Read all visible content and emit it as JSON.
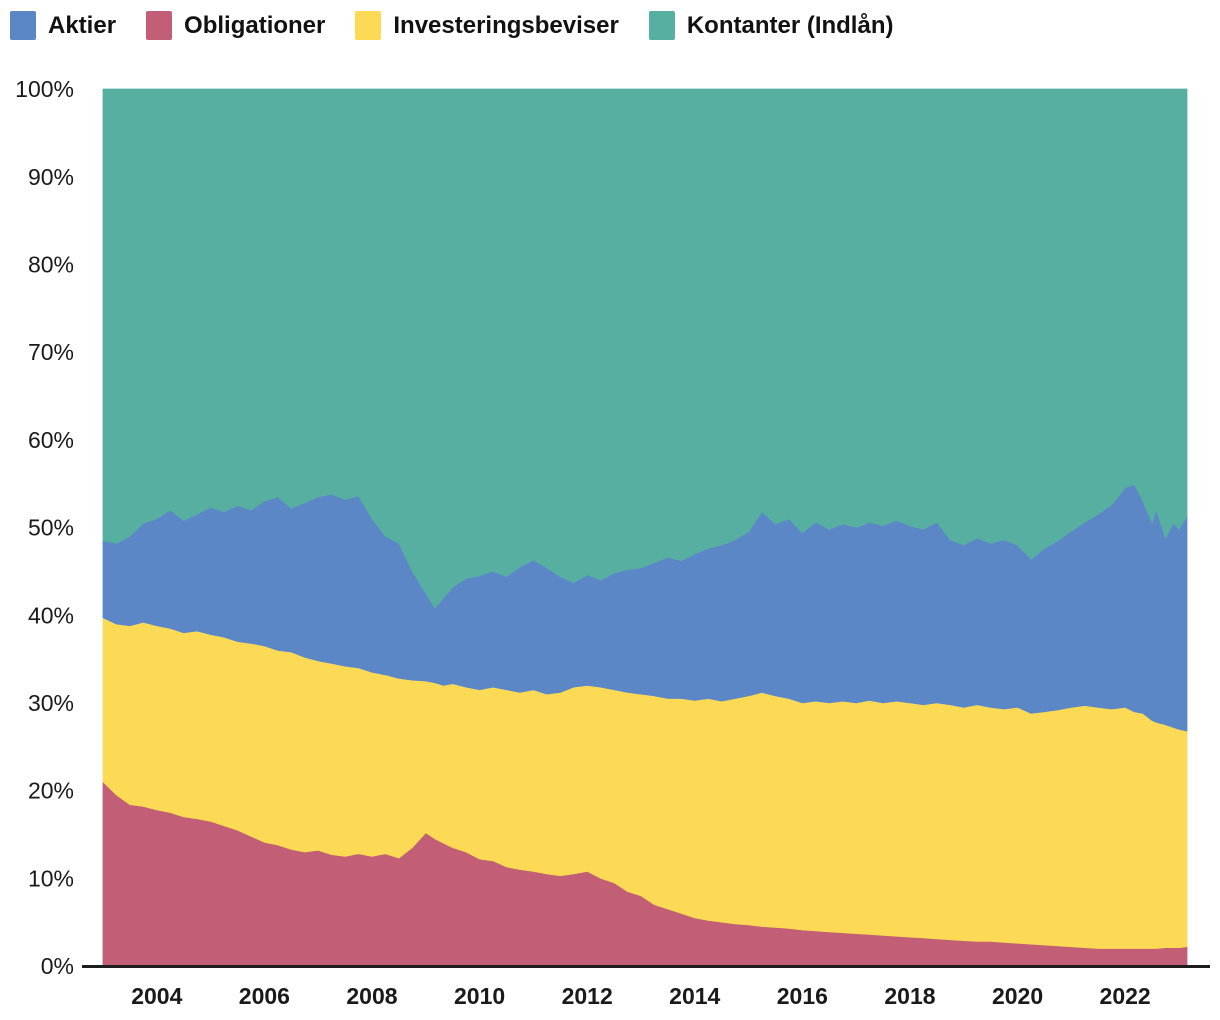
{
  "page": {
    "background": "#ffffff"
  },
  "legend": {
    "items": [
      {
        "id": "aktier",
        "label": "Aktier",
        "color": "#5b87c7"
      },
      {
        "id": "obligationer",
        "label": "Obligationer",
        "color": "#c25e75"
      },
      {
        "id": "investeringsbeviser",
        "label": "Investeringsbeviser",
        "color": "#fdda55"
      },
      {
        "id": "kontanter",
        "label": "Kontanter (Indlån)",
        "color": "#57afa2"
      }
    ]
  },
  "chart_data": {
    "type": "area",
    "stacked": true,
    "normalized": true,
    "title": "",
    "xlabel": "",
    "ylabel": "",
    "grid": false,
    "legend_position": "top-left",
    "axis_color": "#1d1d1d",
    "tick_label_color": "#1a1a1a",
    "xlim": [
      2003.0,
      2023.15
    ],
    "ylim": [
      0,
      100
    ],
    "y_ticks": [
      {
        "value": 0,
        "label": "0%"
      },
      {
        "value": 10,
        "label": "10%"
      },
      {
        "value": 20,
        "label": "20%"
      },
      {
        "value": 30,
        "label": "30%"
      },
      {
        "value": 40,
        "label": "40%"
      },
      {
        "value": 50,
        "label": "50%"
      },
      {
        "value": 60,
        "label": "60%"
      },
      {
        "value": 70,
        "label": "70%"
      },
      {
        "value": 80,
        "label": "80%"
      },
      {
        "value": 90,
        "label": "90%"
      },
      {
        "value": 100,
        "label": "100%"
      }
    ],
    "x_ticks": [
      {
        "value": 2004,
        "label": "2004"
      },
      {
        "value": 2006,
        "label": "2006"
      },
      {
        "value": 2008,
        "label": "2008"
      },
      {
        "value": 2010,
        "label": "2010"
      },
      {
        "value": 2012,
        "label": "2012"
      },
      {
        "value": 2014,
        "label": "2014"
      },
      {
        "value": 2016,
        "label": "2016"
      },
      {
        "value": 2018,
        "label": "2018"
      },
      {
        "value": 2020,
        "label": "2020"
      },
      {
        "value": 2022,
        "label": "2022"
      }
    ],
    "x": [
      2003.0,
      2003.25,
      2003.5,
      2003.75,
      2004.0,
      2004.25,
      2004.5,
      2004.75,
      2005.0,
      2005.25,
      2005.5,
      2005.75,
      2006.0,
      2006.25,
      2006.5,
      2006.75,
      2007.0,
      2007.25,
      2007.5,
      2007.75,
      2008.0,
      2008.25,
      2008.5,
      2008.75,
      2009.0,
      2009.17,
      2009.33,
      2009.5,
      2009.75,
      2010.0,
      2010.25,
      2010.5,
      2010.75,
      2011.0,
      2011.25,
      2011.5,
      2011.75,
      2012.0,
      2012.25,
      2012.5,
      2012.75,
      2013.0,
      2013.25,
      2013.5,
      2013.75,
      2014.0,
      2014.25,
      2014.5,
      2014.75,
      2015.0,
      2015.25,
      2015.5,
      2015.75,
      2016.0,
      2016.25,
      2016.5,
      2016.75,
      2017.0,
      2017.25,
      2017.5,
      2017.75,
      2018.0,
      2018.25,
      2018.5,
      2018.75,
      2019.0,
      2019.25,
      2019.5,
      2019.75,
      2020.0,
      2020.25,
      2020.5,
      2020.75,
      2021.0,
      2021.25,
      2021.5,
      2021.75,
      2022.0,
      2022.17,
      2022.33,
      2022.5,
      2022.58,
      2022.75,
      2022.9,
      2023.0,
      2023.15
    ],
    "series": [
      {
        "id": "obligationer",
        "name": "Obligationer",
        "color": "#c25e75",
        "values": [
          21.0,
          19.5,
          18.4,
          18.2,
          17.8,
          17.5,
          17.0,
          16.8,
          16.5,
          16.0,
          15.5,
          14.8,
          14.1,
          13.8,
          13.3,
          13.0,
          13.2,
          12.7,
          12.5,
          12.8,
          12.5,
          12.8,
          12.3,
          13.5,
          15.2,
          14.5,
          14.0,
          13.5,
          13.0,
          12.2,
          12.0,
          11.3,
          11.0,
          10.8,
          10.5,
          10.3,
          10.5,
          10.8,
          10.0,
          9.5,
          8.5,
          8.0,
          7.0,
          6.5,
          6.0,
          5.5,
          5.2,
          5.0,
          4.8,
          4.7,
          4.5,
          4.4,
          4.3,
          4.1,
          4.0,
          3.9,
          3.8,
          3.7,
          3.6,
          3.5,
          3.4,
          3.3,
          3.2,
          3.1,
          3.0,
          2.9,
          2.8,
          2.8,
          2.7,
          2.6,
          2.5,
          2.4,
          2.3,
          2.2,
          2.1,
          2.0,
          2.0,
          2.0,
          2.0,
          2.0,
          2.0,
          2.0,
          2.1,
          2.1,
          2.1,
          2.2
        ]
      },
      {
        "id": "investeringsbeviser",
        "name": "Investeringsbeviser",
        "color": "#fdda55",
        "values": [
          18.7,
          19.5,
          20.4,
          21.0,
          21.0,
          21.0,
          21.0,
          21.4,
          21.3,
          21.5,
          21.5,
          22.0,
          22.4,
          22.2,
          22.5,
          22.2,
          21.6,
          21.8,
          21.7,
          21.2,
          21.0,
          20.4,
          20.5,
          19.1,
          17.3,
          17.8,
          18.0,
          18.7,
          18.8,
          19.3,
          19.8,
          20.2,
          20.2,
          20.7,
          20.5,
          20.9,
          21.3,
          21.2,
          21.8,
          22.0,
          22.7,
          23.0,
          23.8,
          24.0,
          24.5,
          24.8,
          25.3,
          25.2,
          25.7,
          26.1,
          26.7,
          26.4,
          26.2,
          25.9,
          26.2,
          26.1,
          26.4,
          26.3,
          26.7,
          26.5,
          26.8,
          26.7,
          26.6,
          26.9,
          26.8,
          26.6,
          27.0,
          26.7,
          26.6,
          26.9,
          26.3,
          26.6,
          26.9,
          27.3,
          27.6,
          27.5,
          27.3,
          27.5,
          27.0,
          26.8,
          26.0,
          25.8,
          25.4,
          25.1,
          24.9,
          24.6
        ]
      },
      {
        "id": "aktier",
        "name": "Aktier",
        "color": "#5b87c7",
        "values": [
          8.8,
          9.2,
          10.2,
          11.3,
          12.2,
          13.5,
          12.8,
          13.3,
          14.5,
          14.3,
          15.5,
          15.2,
          16.5,
          17.5,
          16.4,
          17.6,
          18.7,
          19.3,
          19.0,
          19.6,
          17.5,
          15.8,
          15.4,
          12.4,
          10.0,
          8.5,
          10.0,
          11.0,
          12.4,
          13.0,
          13.2,
          12.9,
          14.3,
          14.8,
          14.4,
          13.2,
          11.9,
          12.6,
          12.2,
          13.3,
          14.0,
          14.4,
          15.2,
          16.1,
          15.7,
          16.7,
          17.1,
          17.8,
          18.1,
          18.7,
          20.6,
          19.6,
          20.5,
          19.4,
          20.4,
          19.8,
          20.2,
          20.0,
          20.3,
          20.2,
          20.6,
          20.2,
          20.0,
          20.6,
          18.8,
          18.5,
          19.0,
          18.7,
          19.3,
          18.5,
          17.6,
          18.6,
          19.3,
          20.1,
          20.9,
          22.0,
          23.3,
          25.0,
          25.9,
          24.2,
          22.5,
          24.2,
          21.3,
          23.3,
          22.8,
          24.5
        ]
      },
      {
        "id": "kontanter",
        "name": "Kontanter (Indlån)",
        "color": "#57afa2",
        "values": [
          51.5,
          51.8,
          51.0,
          49.5,
          49.0,
          48.0,
          49.2,
          48.5,
          47.7,
          48.2,
          47.5,
          48.0,
          47.0,
          46.5,
          47.8,
          47.2,
          46.5,
          46.2,
          46.8,
          46.4,
          49.0,
          51.0,
          51.8,
          55.0,
          57.5,
          59.2,
          58.0,
          56.8,
          55.8,
          55.5,
          55.0,
          55.6,
          54.5,
          53.7,
          54.6,
          55.6,
          56.3,
          55.4,
          56.0,
          55.2,
          54.8,
          54.6,
          54.0,
          53.4,
          53.8,
          53.0,
          52.4,
          52.0,
          51.4,
          50.5,
          48.2,
          49.6,
          49.0,
          50.6,
          49.4,
          50.2,
          49.6,
          50.0,
          49.4,
          49.8,
          49.2,
          49.8,
          50.2,
          49.4,
          51.4,
          52.0,
          51.2,
          51.8,
          51.4,
          52.0,
          53.6,
          52.4,
          51.5,
          50.4,
          49.4,
          48.5,
          47.4,
          45.5,
          45.1,
          47.0,
          49.5,
          48.0,
          51.2,
          49.5,
          50.2,
          48.7
        ]
      }
    ]
  }
}
